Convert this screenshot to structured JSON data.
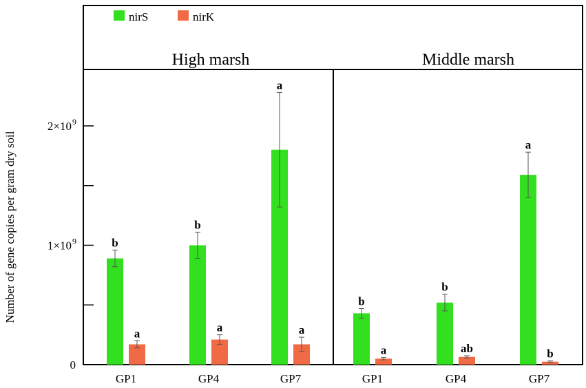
{
  "colors": {
    "nirS": "#33e01f",
    "nirK": "#ef6a45",
    "frame": "#000000"
  },
  "chart_data": {
    "type": "bar",
    "ylabel": "Number of gene copies per gram dry soil",
    "ylim": [
      0,
      2400000000
    ],
    "yticks": [
      {
        "value": 0,
        "label": "0"
      },
      {
        "value": 500000000,
        "label": ""
      },
      {
        "value": 1000000000,
        "label": "1×10",
        "exp": "9"
      },
      {
        "value": 1500000000,
        "label": ""
      },
      {
        "value": 2000000000,
        "label": "2×10",
        "exp": "9"
      }
    ],
    "legend": {
      "placement": "top-left",
      "entries": [
        "nirS",
        "nirK"
      ]
    },
    "panels": [
      {
        "title": "High marsh",
        "categories": [
          "GP1",
          "GP4",
          "GP7"
        ],
        "series": [
          {
            "name": "nirS",
            "values": [
              890000000,
              1000000000,
              1800000000
            ],
            "errors": [
              70000000,
              110000000,
              480000000
            ],
            "letters": [
              "b",
              "b",
              "a"
            ]
          },
          {
            "name": "nirK",
            "values": [
              170000000,
              210000000,
              170000000
            ],
            "errors": [
              30000000,
              40000000,
              60000000
            ],
            "letters": [
              "a",
              "a",
              "a"
            ]
          }
        ]
      },
      {
        "title": "Middle marsh",
        "categories": [
          "GP1",
          "GP4",
          "GP7"
        ],
        "series": [
          {
            "name": "nirS",
            "values": [
              430000000,
              520000000,
              1590000000
            ],
            "errors": [
              40000000,
              70000000,
              190000000
            ],
            "letters": [
              "b",
              "b",
              "a"
            ]
          },
          {
            "name": "nirK",
            "values": [
              50000000,
              65000000,
              25000000
            ],
            "errors": [
              10000000,
              10000000,
              6000000
            ],
            "letters": [
              "a",
              "ab",
              "b"
            ]
          }
        ]
      }
    ]
  }
}
